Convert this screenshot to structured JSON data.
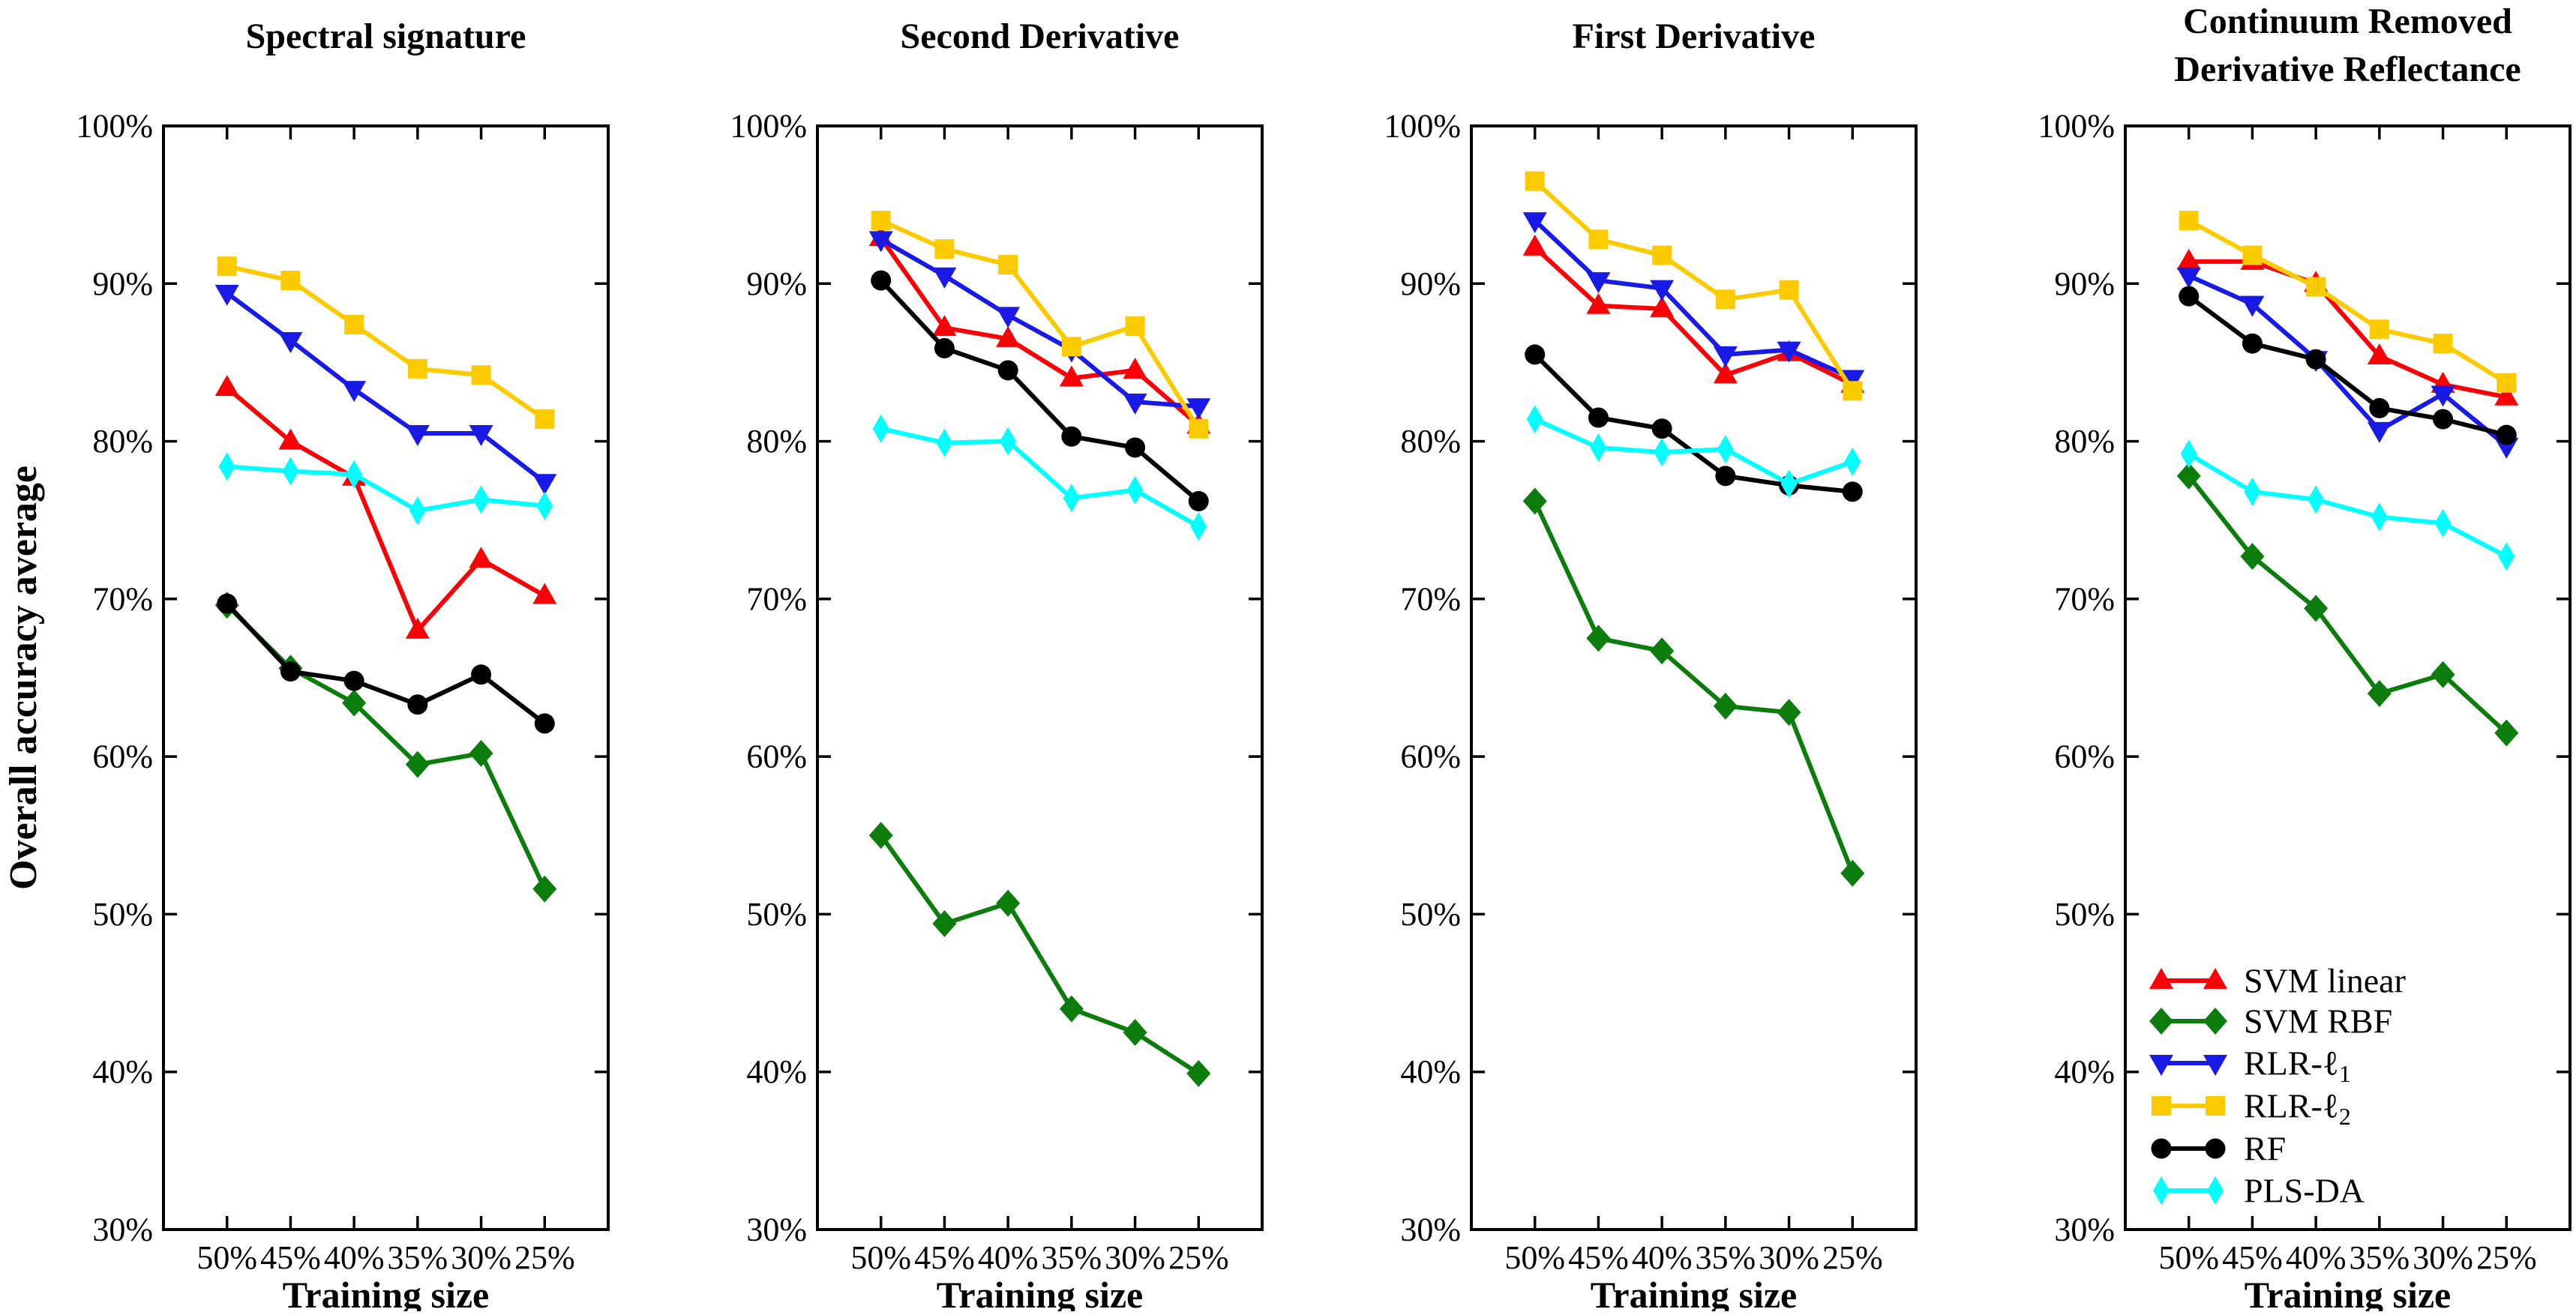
{
  "figure": {
    "ylabel": "Overall accuracy average",
    "xlabel": "Training size",
    "y_tick_labels": [
      "100%",
      "90%",
      "80%",
      "70%",
      "60%",
      "50%",
      "40%",
      "30%"
    ],
    "y_tick_values": [
      100,
      90,
      80,
      70,
      60,
      50,
      40,
      30
    ],
    "x_tick_labels": [
      "50%",
      "45%",
      "40%",
      "35%",
      "30%",
      "25%"
    ],
    "ylim": [
      30,
      100
    ]
  },
  "colors": {
    "svm_linear": "#FB0006",
    "svm_rbf": "#0C7D0C",
    "rlr_l1": "#1A1AE6",
    "rlr_l2": "#FBCB00",
    "rf": "#000000",
    "pls_da": "#00FFFF",
    "axis": "#000000"
  },
  "legend": {
    "entries": [
      {
        "key": "svm_linear",
        "main": "SVM linear",
        "sub": "",
        "marker": "triangle-up"
      },
      {
        "key": "svm_rbf",
        "main": "SVM RBF",
        "sub": "",
        "marker": "diamond"
      },
      {
        "key": "rlr_l1",
        "main": "RLR-ℓ",
        "sub": "1",
        "marker": "triangle-down"
      },
      {
        "key": "rlr_l2",
        "main": "RLR-ℓ",
        "sub": "2",
        "marker": "square"
      },
      {
        "key": "rf",
        "main": "RF",
        "sub": "",
        "marker": "circle"
      },
      {
        "key": "pls_da",
        "main": "PLS-DA",
        "sub": "",
        "marker": "thin-diamond"
      }
    ]
  },
  "chart_data": [
    {
      "type": "line",
      "title": [
        "Spectral signature"
      ],
      "xlabel": "Training size",
      "ylabel": "Overall accuracy average",
      "ylim": [
        30,
        100
      ],
      "categories": [
        "50%",
        "45%",
        "40%",
        "35%",
        "30%",
        "25%"
      ],
      "series": [
        {
          "name": "SVM linear",
          "key": "svm_linear",
          "marker": "triangle-up",
          "values": [
            83.4,
            80.0,
            77.7,
            68.0,
            72.5,
            70.2
          ]
        },
        {
          "name": "SVM RBF",
          "key": "svm_rbf",
          "marker": "diamond",
          "values": [
            69.6,
            65.6,
            63.4,
            59.5,
            60.2,
            51.6
          ]
        },
        {
          "name": "RLR-ℓ1",
          "key": "rlr_l1",
          "marker": "triangle-down",
          "values": [
            89.4,
            86.4,
            83.3,
            80.5,
            80.5,
            77.4
          ]
        },
        {
          "name": "RLR-ℓ2",
          "key": "rlr_l2",
          "marker": "square",
          "values": [
            91.1,
            90.2,
            87.4,
            84.6,
            84.2,
            81.4
          ]
        },
        {
          "name": "RF",
          "key": "rf",
          "marker": "circle",
          "values": [
            69.7,
            65.4,
            64.8,
            63.3,
            65.2,
            62.1
          ]
        },
        {
          "name": "PLS-DA",
          "key": "pls_da",
          "marker": "thin-diamond",
          "values": [
            78.4,
            78.1,
            77.9,
            75.6,
            76.3,
            75.9
          ]
        }
      ]
    },
    {
      "type": "line",
      "title": [
        "Second Derivative"
      ],
      "xlabel": "Training size",
      "ylabel": "Overall accuracy average",
      "ylim": [
        30,
        100
      ],
      "categories": [
        "50%",
        "45%",
        "40%",
        "35%",
        "30%",
        "25%"
      ],
      "series": [
        {
          "name": "SVM linear",
          "key": "svm_linear",
          "marker": "triangle-up",
          "values": [
            92.9,
            87.2,
            86.5,
            84.0,
            84.5,
            81.0
          ]
        },
        {
          "name": "SVM RBF",
          "key": "svm_rbf",
          "marker": "diamond",
          "values": [
            55.0,
            49.4,
            50.7,
            44.0,
            42.5,
            39.9
          ]
        },
        {
          "name": "RLR-ℓ1",
          "key": "rlr_l1",
          "marker": "triangle-down",
          "values": [
            92.8,
            90.5,
            88.0,
            85.8,
            82.5,
            82.2
          ]
        },
        {
          "name": "RLR-ℓ2",
          "key": "rlr_l2",
          "marker": "square",
          "values": [
            94.0,
            92.2,
            91.2,
            86.0,
            87.3,
            80.8
          ]
        },
        {
          "name": "RF",
          "key": "rf",
          "marker": "circle",
          "values": [
            90.2,
            85.9,
            84.5,
            80.3,
            79.6,
            76.2
          ]
        },
        {
          "name": "PLS-DA",
          "key": "pls_da",
          "marker": "thin-diamond",
          "values": [
            80.8,
            79.9,
            80.0,
            76.4,
            76.9,
            74.6
          ]
        }
      ]
    },
    {
      "type": "line",
      "title": [
        "First Derivative"
      ],
      "xlabel": "Training size",
      "ylabel": "Overall accuracy average",
      "ylim": [
        30,
        100
      ],
      "categories": [
        "50%",
        "45%",
        "40%",
        "35%",
        "30%",
        "25%"
      ],
      "series": [
        {
          "name": "SVM linear",
          "key": "svm_linear",
          "marker": "triangle-up",
          "values": [
            92.3,
            88.6,
            88.4,
            84.2,
            85.6,
            83.6
          ]
        },
        {
          "name": "SVM RBF",
          "key": "svm_rbf",
          "marker": "diamond",
          "values": [
            76.2,
            67.5,
            66.7,
            63.2,
            62.8,
            52.6
          ]
        },
        {
          "name": "RLR-ℓ1",
          "key": "rlr_l1",
          "marker": "triangle-down",
          "values": [
            94.0,
            90.2,
            89.7,
            85.5,
            85.8,
            84.0
          ]
        },
        {
          "name": "RLR-ℓ2",
          "key": "rlr_l2",
          "marker": "square",
          "values": [
            96.5,
            92.8,
            91.8,
            89.0,
            89.6,
            83.2
          ]
        },
        {
          "name": "RF",
          "key": "rf",
          "marker": "circle",
          "values": [
            85.5,
            81.5,
            80.8,
            77.8,
            77.2,
            76.8
          ]
        },
        {
          "name": "PLS-DA",
          "key": "pls_da",
          "marker": "thin-diamond",
          "values": [
            81.4,
            79.6,
            79.3,
            79.5,
            77.3,
            78.7
          ]
        }
      ]
    },
    {
      "type": "line",
      "title": [
        "Continuum Removed",
        "Derivative Reflectance"
      ],
      "xlabel": "Training size",
      "ylabel": "Overall accuracy average",
      "ylim": [
        30,
        100
      ],
      "categories": [
        "50%",
        "45%",
        "40%",
        "35%",
        "30%",
        "25%"
      ],
      "series": [
        {
          "name": "SVM linear",
          "key": "svm_linear",
          "marker": "triangle-up",
          "values": [
            91.4,
            91.4,
            90.0,
            85.4,
            83.6,
            82.8
          ]
        },
        {
          "name": "SVM RBF",
          "key": "svm_rbf",
          "marker": "diamond",
          "values": [
            77.8,
            72.7,
            69.4,
            64.0,
            65.2,
            61.5
          ]
        },
        {
          "name": "RLR-ℓ1",
          "key": "rlr_l1",
          "marker": "triangle-down",
          "values": [
            90.5,
            88.7,
            85.2,
            80.7,
            83.0,
            79.7
          ]
        },
        {
          "name": "RLR-ℓ2",
          "key": "rlr_l2",
          "marker": "square",
          "values": [
            94.0,
            91.8,
            89.8,
            87.1,
            86.2,
            83.7
          ]
        },
        {
          "name": "RF",
          "key": "rf",
          "marker": "circle",
          "values": [
            89.2,
            86.2,
            85.2,
            82.1,
            81.4,
            80.4
          ]
        },
        {
          "name": "PLS-DA",
          "key": "pls_da",
          "marker": "thin-diamond",
          "values": [
            79.2,
            76.8,
            76.3,
            75.2,
            74.8,
            72.7
          ]
        }
      ]
    }
  ]
}
